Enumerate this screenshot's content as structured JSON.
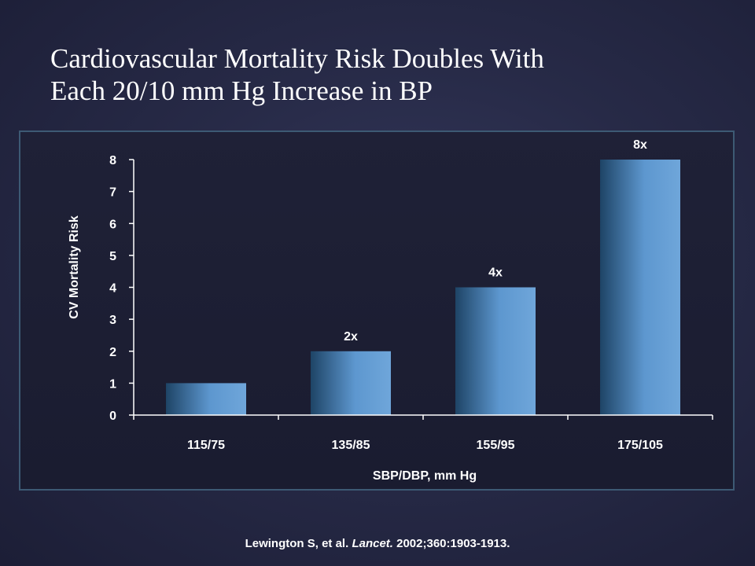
{
  "title_lines": [
    "Cardiovascular Mortality Risk Doubles With",
    "Each 20/10 mm Hg Increase in BP"
  ],
  "source": {
    "authors": "Lewington S, et al.",
    "journal": "Lancet.",
    "details": "2002;360:1903-1913."
  },
  "colors": {
    "bar_light": "#6fa6da",
    "bar_dark": "#1e4466",
    "axis": "#ffffff",
    "frame_border": "#3d5a74"
  },
  "chart_data": {
    "type": "bar",
    "categories": [
      "115/75",
      "135/85",
      "155/95",
      "175/105"
    ],
    "values": [
      1,
      2,
      4,
      8
    ],
    "data_labels": [
      "",
      "2x",
      "4x",
      "8x"
    ],
    "xlabel": "SBP/DBP, mm Hg",
    "ylabel": "CV Mortality Risk",
    "ylim": [
      0,
      8
    ],
    "yticks": [
      "0",
      "1",
      "2",
      "3",
      "4",
      "5",
      "6",
      "7",
      "8"
    ],
    "grid": false,
    "legend": "none"
  }
}
